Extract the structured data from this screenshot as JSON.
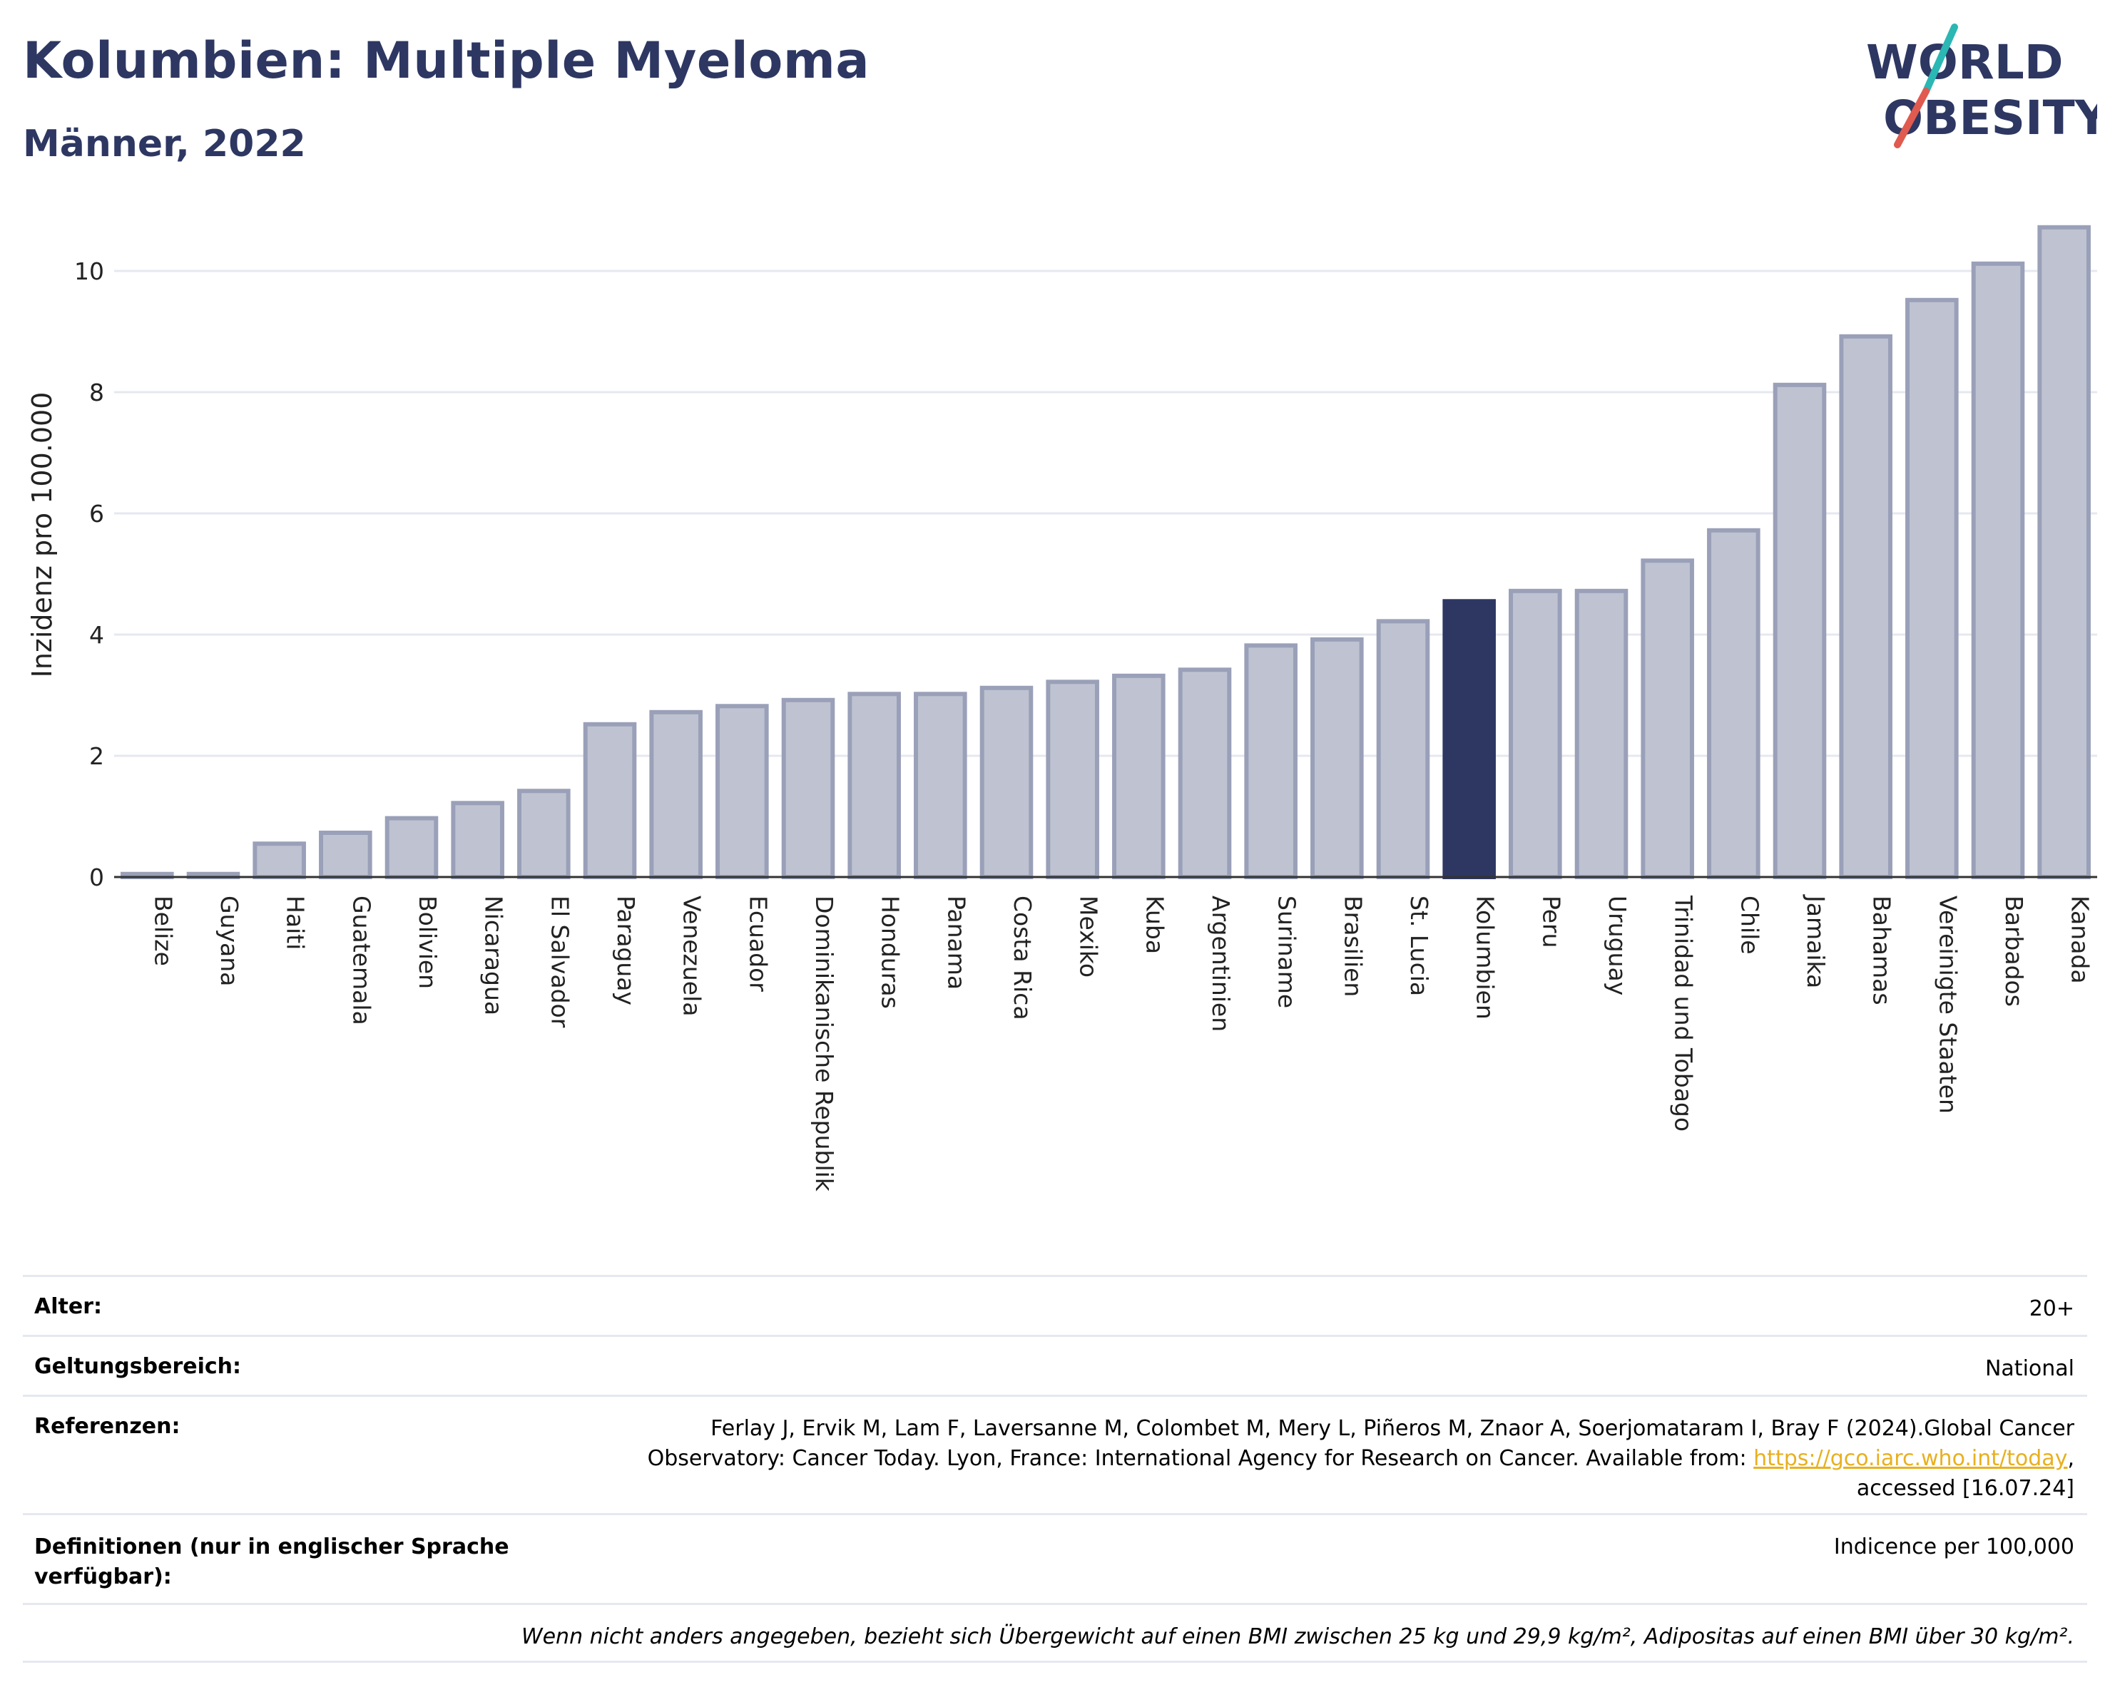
{
  "title": "Kolumbien: Multiple Myeloma",
  "subtitle": "Männer, 2022",
  "logo": {
    "line1": "WORLD",
    "line2": "OBESITY",
    "accent_teal": "#2bb7b3",
    "accent_red": "#e05a4f",
    "text_color": "#2d3762"
  },
  "colors": {
    "bar": "#bfc3d1",
    "bar_border": "#9aa0b8",
    "highlight": "#2d3762",
    "axis": "#333333",
    "grid": "#e6e8f0"
  },
  "chart_data": {
    "type": "bar",
    "title": "Kolumbien: Multiple Myeloma",
    "subtitle": "Männer, 2022",
    "xlabel": "",
    "ylabel": "Inzidenz pro 100.000",
    "ylim": [
      0,
      11
    ],
    "yticks": [
      0,
      2,
      4,
      6,
      8,
      10
    ],
    "grid": true,
    "highlight": "Kolumbien",
    "categories": [
      "Belize",
      "Guyana",
      "Haiti",
      "Guatemala",
      "Bolivien",
      "Nicaragua",
      "El Salvador",
      "Paraguay",
      "Venezuela",
      "Ecuador",
      "Dominikanische Republik",
      "Honduras",
      "Panama",
      "Costa Rica",
      "Mexiko",
      "Kuba",
      "Argentinien",
      "Suriname",
      "Brasilien",
      "St. Lucia",
      "Kolumbien",
      "Peru",
      "Uruguay",
      "Trinidad und Tobago",
      "Chile",
      "Jamaika",
      "Bahamas",
      "Vereinigte Staaten",
      "Barbados",
      "Kanada"
    ],
    "values": [
      0.05,
      0.05,
      0.55,
      0.73,
      0.97,
      1.22,
      1.42,
      2.52,
      2.72,
      2.82,
      2.92,
      3.02,
      3.02,
      3.12,
      3.22,
      3.32,
      3.42,
      3.82,
      3.92,
      4.22,
      4.55,
      4.72,
      4.72,
      5.22,
      5.72,
      8.12,
      8.92,
      9.52,
      10.12,
      10.72
    ]
  },
  "info": {
    "age_label": "Alter:",
    "age_value": "20+",
    "scope_label": "Geltungsbereich:",
    "scope_value": "National",
    "refs_label": "Referenzen:",
    "refs_line1": "Ferlay J, Ervik M, Lam F, Laversanne M, Colombet M, Mery L, Piñeros M, Znaor A, Soerjomataram I, Bray F (2024).Global Cancer",
    "refs_line2_pre": "Observatory: Cancer Today. Lyon, France: International Agency for Research on Cancer. Available from: ",
    "refs_link": "https://gco.iarc.who.int/today",
    "refs_line2_post": ",",
    "refs_line3": "accessed [16.07.24]",
    "defs_label": "Definitionen (nur in englischer Sprache verfügbar):",
    "defs_value": "Indicence per 100,000",
    "note": "Wenn nicht anders angegeben, bezieht sich Übergewicht auf einen BMI zwischen 25 kg und 29,9 kg/m², Adipositas auf einen BMI über 30 kg/m²."
  }
}
